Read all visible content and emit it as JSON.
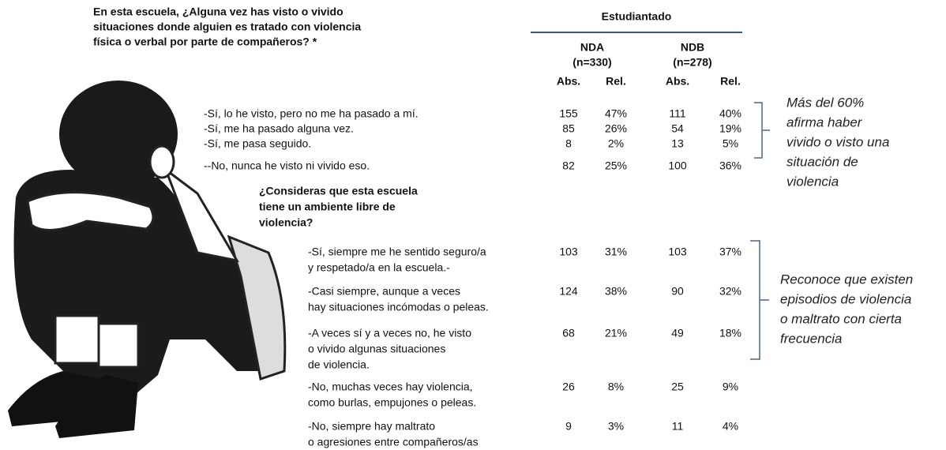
{
  "question1": [
    "En esta escuela, ¿Alguna vez has visto o vivido",
    "situaciones  donde alguien es tratado con violencia",
    "física o verbal por parte de compañeros? *"
  ],
  "table_header": {
    "title": "Estudiantado",
    "groups": [
      [
        "NDA",
        "(n=330)"
      ],
      [
        "NDB",
        "(n=278)"
      ]
    ],
    "columns": [
      "Abs.",
      "Rel.",
      "Abs.",
      "Rel."
    ]
  },
  "rows1": [
    {
      "label": [
        "-Sí, lo he visto, pero no me ha pasado a mí."
      ],
      "cells": [
        "155",
        "47%",
        "111",
        "40%"
      ]
    },
    {
      "label": [
        "-Sí, me ha pasado alguna vez."
      ],
      "cells": [
        "85",
        "26%",
        "54",
        "19%"
      ]
    },
    {
      "label": [
        "-Sí, me pasa seguido."
      ],
      "cells": [
        "8",
        "2%",
        "13",
        "5%"
      ]
    },
    {
      "label": [
        "--No, nunca  he visto ni vivido eso."
      ],
      "cells": [
        "82",
        "25%",
        "100",
        "36%"
      ]
    }
  ],
  "note1": [
    "Más del 60%",
    "afirma haber",
    "vivido o visto una",
    "situación de",
    "violencia"
  ],
  "question2": [
    "¿Consideras que esta escuela",
    "tiene un ambiente libre de",
    "violencia?"
  ],
  "rows2": [
    {
      "label": [
        "-Sí, siempre me he sentido seguro/a",
        " y respetado/a en la escuela.-"
      ],
      "cells": [
        "103",
        "31%",
        "103",
        "37%"
      ]
    },
    {
      "label": [
        "-Casi siempre,  aunque  a veces",
        " hay situaciones incómodas o peleas."
      ],
      "cells": [
        "124",
        "38%",
        "90",
        "32%"
      ]
    },
    {
      "label": [
        "-A veces sí y a veces no, he visto",
        " o vivido  algunas situaciones",
        "de violencia."
      ],
      "cells": [
        "68",
        "21%",
        "49",
        "18%"
      ]
    },
    {
      "label": [
        "-No, muchas veces hay violencia,",
        "como burlas, empujones  o peleas."
      ],
      "cells": [
        "26",
        "8%",
        "25",
        "9%"
      ]
    },
    {
      "label": [
        "-No, siempre hay maltrato",
        "o agresiones entre compañeros/as"
      ],
      "cells": [
        "9",
        "3%",
        "11",
        "4%"
      ]
    }
  ],
  "note2": [
    "Reconoce que existen",
    "episodios de violencia",
    "o maltrato con cierta",
    "frecuencia"
  ]
}
